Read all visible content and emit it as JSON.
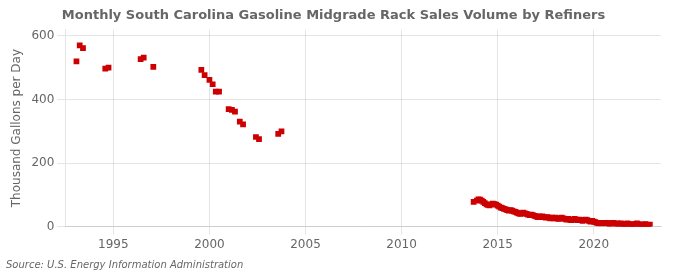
{
  "chart_data": {
    "type": "line",
    "title": "Monthly South Carolina Gasoline Midgrade Rack Sales Volume by Refiners",
    "ylabel": "Thousand Gallons per Day",
    "annotations": [
      "Source: U.S. Energy Information Administration"
    ],
    "xlim": [
      1992.5,
      2023.5
    ],
    "xticks": [
      1995,
      2000,
      2005,
      2010,
      2015,
      2020
    ],
    "ylim": [
      0,
      620
    ],
    "yticks": [
      0,
      200,
      400,
      600
    ],
    "grid": true,
    "series": [
      {
        "type": "scatter",
        "color": "#cc0000",
        "marker": "square",
        "line_style": "none",
        "x": [
          1993.08,
          1993.25,
          1993.42,
          1994.58,
          1994.75,
          1996.42,
          1996.58,
          1997.08,
          1999.58,
          1999.75,
          2000.0,
          2000.17,
          2000.33,
          2000.5,
          2001.0,
          2001.17,
          2001.33,
          2001.58,
          2001.75,
          2002.42,
          2002.58,
          2003.58,
          2003.75
        ],
        "values": [
          520,
          570,
          562,
          497,
          500,
          527,
          532,
          503,
          493,
          477,
          462,
          448,
          425,
          425,
          370,
          367,
          362,
          330,
          322,
          282,
          275,
          292,
          300
        ]
      },
      {
        "type": "line",
        "color": "#cc0000",
        "marker": "square",
        "line_style": "solid",
        "x": [
          2013.75,
          2013.92,
          2014.0,
          2014.08,
          2014.17,
          2014.25,
          2014.33,
          2014.42,
          2014.5,
          2014.58,
          2014.67,
          2014.75,
          2014.83,
          2014.92,
          2015.0,
          2015.08,
          2015.17,
          2015.25,
          2015.33,
          2015.42,
          2015.5,
          2015.58,
          2015.67,
          2015.75,
          2015.83,
          2015.92,
          2016.0,
          2016.08,
          2016.17,
          2016.25,
          2016.33,
          2016.42,
          2016.5,
          2016.58,
          2016.67,
          2016.75,
          2016.83,
          2016.92,
          2017.0,
          2017.08,
          2017.17,
          2017.25,
          2017.33,
          2017.42,
          2017.5,
          2017.58,
          2017.67,
          2017.75,
          2017.83,
          2017.92,
          2018.0,
          2018.08,
          2018.17,
          2018.25,
          2018.33,
          2018.42,
          2018.5,
          2018.58,
          2018.67,
          2018.75,
          2018.83,
          2018.92,
          2019.0,
          2019.08,
          2019.17,
          2019.25,
          2019.33,
          2019.42,
          2019.5,
          2019.58,
          2019.67,
          2019.75,
          2019.83,
          2019.92,
          2020.0,
          2020.08,
          2020.17,
          2020.25,
          2020.33,
          2020.42,
          2020.5,
          2020.58,
          2020.67,
          2020.75,
          2020.83,
          2020.92,
          2021.0,
          2021.08,
          2021.17,
          2021.25,
          2021.33,
          2021.42,
          2021.5,
          2021.58,
          2021.67,
          2021.75,
          2021.83,
          2021.92,
          2022.0,
          2022.08,
          2022.17,
          2022.25,
          2022.33,
          2022.42,
          2022.5,
          2022.58,
          2022.67,
          2022.75,
          2022.83,
          2022.92
        ],
        "values": [
          78,
          82,
          86,
          85,
          82,
          78,
          74,
          70,
          68,
          67,
          70,
          72,
          71,
          69,
          66,
          63,
          60,
          58,
          56,
          54,
          52,
          50,
          52,
          50,
          48,
          46,
          44,
          42,
          40,
          42,
          44,
          42,
          40,
          38,
          36,
          38,
          36,
          34,
          32,
          30,
          32,
          30,
          32,
          30,
          28,
          30,
          28,
          26,
          28,
          26,
          28,
          26,
          24,
          26,
          28,
          26,
          24,
          22,
          24,
          22,
          20,
          22,
          24,
          22,
          20,
          22,
          20,
          18,
          20,
          22,
          20,
          18,
          16,
          18,
          16,
          14,
          12,
          10,
          12,
          10,
          12,
          10,
          12,
          10,
          8,
          10,
          12,
          10,
          8,
          10,
          8,
          10,
          8,
          6,
          8,
          10,
          8,
          6,
          8,
          6,
          8,
          10,
          8,
          6,
          4,
          6,
          8,
          6,
          4,
          6
        ]
      }
    ]
  }
}
